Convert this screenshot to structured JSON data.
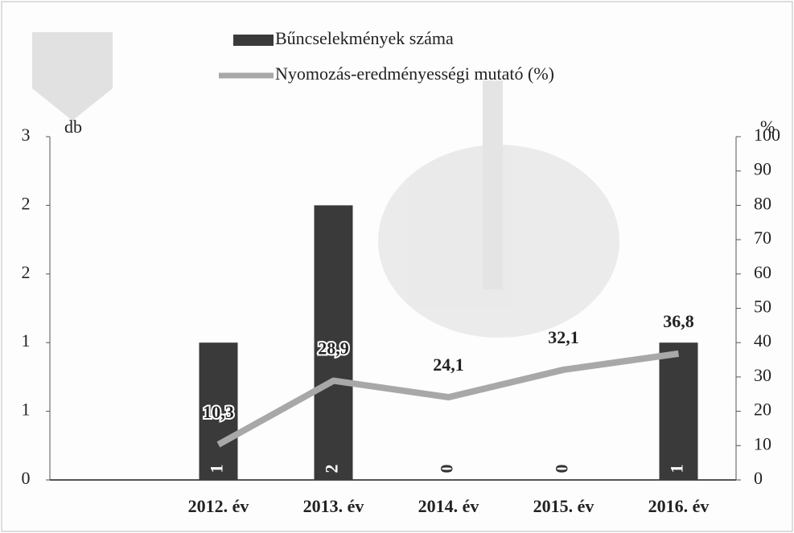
{
  "chart_data": {
    "type": "bar-line",
    "categories": [
      "2012. év",
      "2013. év",
      "2014. év",
      "2015. év",
      "2016. év"
    ],
    "y_label": "db",
    "y2_label": "%",
    "series": [
      {
        "name": "Bűncselekmények száma",
        "type": "bar",
        "color": "#3a3a3a",
        "values": [
          1,
          2,
          0,
          0,
          1
        ]
      },
      {
        "name": "Nyomozás-eredményességi mutató (%)",
        "type": "line",
        "axis": "y2",
        "color": "#a8a8a8",
        "values": [
          10.3,
          28.9,
          24.1,
          32.1,
          36.8
        ],
        "value_labels": [
          "10,3",
          "28,9",
          "24,1",
          "32,1",
          "36,8"
        ]
      }
    ],
    "ylim": [
      0,
      2.5
    ],
    "yticks": [
      0,
      {
        "value": 0.5,
        "label": "1"
      },
      1,
      {
        "value": 1.5,
        "label": "2"
      },
      2,
      {
        "value": 2.5,
        "label": "3"
      }
    ],
    "y2lim": [
      0,
      100
    ],
    "y2ticks": [
      0,
      10,
      20,
      30,
      40,
      50,
      60,
      70,
      80,
      90,
      100
    ]
  }
}
